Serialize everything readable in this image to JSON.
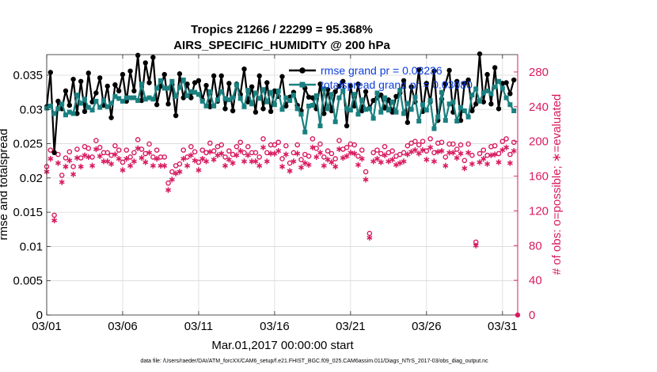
{
  "chart_data": {
    "type": "line",
    "title_line1": "Tropics 21266 / 22299 = 95.368%",
    "title_line2": "AIRS_SPECIFIC_HUMIDITY @ 200 hPa",
    "xlabel": "Mar.01,2017 00:00:00 start",
    "ylabel_left": "rmse and totalspread",
    "ylabel_right": "# of obs: o=possible; ∗=evaluated",
    "footer": "data file: /Users/raeder/DAI/ATM_forcXX/CAM6_setup/f.e21.FHIST_BGC.f09_025.CAM6assim.011/Diags_NTrS_2017-03/obs_diag_output.nc",
    "xlim": [
      1,
      32
    ],
    "ylim_left": [
      0,
      0.038
    ],
    "ylim_right": [
      0,
      300
    ],
    "x_ticks": [
      1,
      6,
      11,
      16,
      21,
      26,
      31
    ],
    "x_tick_labels": [
      "03/01",
      "03/06",
      "03/11",
      "03/16",
      "03/21",
      "03/26",
      "03/31"
    ],
    "y_ticks_left": [
      0,
      0.005,
      0.01,
      0.015,
      0.02,
      0.025,
      0.03,
      0.035
    ],
    "y_tick_labels_left": [
      "0",
      "0.005",
      "0.01",
      "0.015",
      "0.02",
      "0.025",
      "0.03",
      "0.035"
    ],
    "y_ticks_right": [
      0,
      40,
      80,
      120,
      160,
      200,
      240,
      280
    ],
    "y_tick_labels_right": [
      "0",
      "40",
      "80",
      "120",
      "160",
      "200",
      "240",
      "280"
    ],
    "legend": [
      {
        "label": "rmse grand pr = 0.03236",
        "series": "rmse"
      },
      {
        "label": "totalspread grand pr = 0.03080",
        "series": "totalspread"
      }
    ],
    "colors": {
      "rmse": "#000000",
      "totalspread": "#1a8080",
      "obs": "#d81b60",
      "right_axis": "#d81b60"
    },
    "x": [
      1.0,
      1.25,
      1.5,
      1.75,
      2.0,
      2.25,
      2.5,
      2.75,
      3.0,
      3.25,
      3.5,
      3.75,
      4.0,
      4.25,
      4.5,
      4.75,
      5.0,
      5.25,
      5.5,
      5.75,
      6.0,
      6.25,
      6.5,
      6.75,
      7.0,
      7.25,
      7.5,
      7.75,
      8.0,
      8.25,
      8.5,
      8.75,
      9.0,
      9.25,
      9.5,
      9.75,
      10.0,
      10.25,
      10.5,
      10.75,
      11.0,
      11.25,
      11.5,
      11.75,
      12.0,
      12.25,
      12.5,
      12.75,
      13.0,
      13.25,
      13.5,
      13.75,
      14.0,
      14.25,
      14.5,
      14.75,
      15.0,
      15.25,
      15.5,
      15.75,
      16.0,
      16.25,
      16.5,
      16.75,
      17.0,
      17.25,
      17.5,
      17.75,
      18.0,
      18.25,
      18.5,
      18.75,
      19.0,
      19.25,
      19.5,
      19.75,
      20.0,
      20.25,
      20.5,
      20.75,
      21.0,
      21.25,
      21.5,
      21.75,
      22.0,
      22.25,
      22.5,
      22.75,
      23.0,
      23.25,
      23.5,
      23.75,
      24.0,
      24.25,
      24.5,
      24.75,
      25.0,
      25.25,
      25.5,
      25.75,
      26.0,
      26.25,
      26.5,
      26.75,
      27.0,
      27.25,
      27.5,
      27.75,
      28.0,
      28.25,
      28.5,
      28.75,
      29.0,
      29.25,
      29.5,
      29.75,
      30.0,
      30.25,
      30.5,
      30.75,
      31.0,
      31.25,
      31.5,
      31.75
    ],
    "series": [
      {
        "name": "rmse",
        "values": [
          0.0304,
          0.0354,
          0.0237,
          0.0312,
          0.0301,
          0.0327,
          0.0306,
          0.0344,
          0.0294,
          0.0341,
          0.0297,
          0.0353,
          0.0311,
          0.0324,
          0.0346,
          0.0306,
          0.0334,
          0.0288,
          0.0336,
          0.0327,
          0.0351,
          0.0312,
          0.0356,
          0.0327,
          0.0379,
          0.0313,
          0.0368,
          0.0339,
          0.0376,
          0.0307,
          0.0334,
          0.0351,
          0.0308,
          0.0336,
          0.0291,
          0.0352,
          0.0317,
          0.0337,
          0.0317,
          0.0339,
          0.0342,
          0.0314,
          0.0335,
          0.0304,
          0.0349,
          0.0312,
          0.0349,
          0.0301,
          0.0338,
          0.0298,
          0.0337,
          0.0322,
          0.0359,
          0.0311,
          0.0333,
          0.0296,
          0.0349,
          0.0301,
          0.0339,
          0.0297,
          0.0327,
          0.0319,
          0.0348,
          0.0305,
          0.0318,
          0.0325,
          0.0306,
          0.0298,
          0.0331,
          0.0318,
          0.0317,
          0.0301,
          0.0337,
          0.0294,
          0.0329,
          0.0298,
          0.0326,
          0.0334,
          0.0341,
          0.0276,
          0.0334,
          0.0305,
          0.0337,
          0.0298,
          0.0326,
          0.0302,
          0.0313,
          0.0317,
          0.0321,
          0.0302,
          0.0314,
          0.0296,
          0.0319,
          0.0324,
          0.0342,
          0.0281,
          0.0333,
          0.0311,
          0.0358,
          0.0297,
          0.0338,
          0.0311,
          0.0356,
          0.0284,
          0.0315,
          0.0337,
          0.0357,
          0.0296,
          0.0341,
          0.0284,
          0.0338,
          0.0343,
          0.0298,
          0.0308,
          0.0381,
          0.0311,
          0.0351,
          0.0308,
          0.0361,
          0.0301,
          0.0338,
          0.0339,
          0.0323,
          0.0343
        ]
      },
      {
        "name": "totalspread",
        "values": [
          0.0302,
          0.0305,
          0.0294,
          0.0301,
          0.0308,
          0.0292,
          0.0296,
          0.0294,
          0.0321,
          0.0309,
          0.0315,
          0.0303,
          0.0299,
          0.0312,
          0.0303,
          0.0313,
          0.0304,
          0.0309,
          0.0319,
          0.0316,
          0.0312,
          0.0317,
          0.0317,
          0.0317,
          0.0313,
          0.0337,
          0.0315,
          0.0317,
          0.0315,
          0.0331,
          0.0342,
          0.0331,
          0.0331,
          0.0341,
          0.0319,
          0.0332,
          0.0343,
          0.032,
          0.0326,
          0.0325,
          0.0322,
          0.0312,
          0.0305,
          0.0326,
          0.0305,
          0.0314,
          0.0326,
          0.0316,
          0.0314,
          0.0317,
          0.0336,
          0.0316,
          0.0304,
          0.0328,
          0.0308,
          0.0324,
          0.0316,
          0.0329,
          0.0311,
          0.0325,
          0.0307,
          0.0327,
          0.03,
          0.0317,
          0.0313,
          0.0321,
          0.0301,
          0.0293,
          0.0267,
          0.0305,
          0.0306,
          0.032,
          0.0276,
          0.033,
          0.0301,
          0.0322,
          0.0282,
          0.0317,
          0.0327,
          0.0301,
          0.0299,
          0.0322,
          0.0293,
          0.0314,
          0.03,
          0.0301,
          0.0287,
          0.0324,
          0.0296,
          0.0317,
          0.0299,
          0.0311,
          0.0296,
          0.0328,
          0.0294,
          0.0309,
          0.03,
          0.0318,
          0.0283,
          0.0307,
          0.0299,
          0.0313,
          0.0272,
          0.0289,
          0.0325,
          0.0284,
          0.0308,
          0.0311,
          0.0283,
          0.0303,
          0.0298,
          0.0289,
          0.0321,
          0.033,
          0.0312,
          0.0324,
          0.0327,
          0.0323,
          0.0333,
          0.0341,
          0.0331,
          0.0317,
          0.0307,
          0.0298
        ]
      },
      {
        "name": "obs_possible",
        "values": [
          171,
          190,
          115,
          185,
          161,
          181,
          188,
          171,
          191,
          181,
          194,
          192,
          182,
          201,
          193,
          187,
          187,
          184,
          195,
          190,
          176,
          190,
          182,
          187,
          202,
          191,
          186,
          197,
          182,
          190,
          182,
          182,
          152,
          165,
          172,
          174,
          190,
          182,
          194,
          188,
          176,
          190,
          187,
          198,
          189,
          194,
          196,
          182,
          189,
          185,
          194,
          199,
          187,
          194,
          187,
          187,
          182,
          203,
          187,
          196,
          196,
          199,
          180,
          195,
          175,
          187,
          196,
          179,
          185,
          183,
          203,
          192,
          197,
          182,
          189,
          186,
          180,
          201,
          191,
          193,
          197,
          196,
          183,
          190,
          165,
          94,
          187,
          190,
          186,
          194,
          187,
          189,
          183,
          185,
          187,
          195,
          198,
          200,
          196,
          200,
          189,
          203,
          187,
          198,
          199,
          182,
          197,
          197,
          191,
          196,
          178,
          197,
          184,
          84,
          186,
          190,
          184,
          194,
          195,
          186,
          200,
          203,
          185,
          199
        ]
      },
      {
        "name": "obs_evaluated",
        "values": [
          165,
          180,
          109,
          175,
          153,
          171,
          178,
          162,
          181,
          171,
          184,
          182,
          172,
          191,
          183,
          177,
          177,
          174,
          185,
          180,
          167,
          180,
          172,
          177,
          192,
          181,
          176,
          187,
          172,
          180,
          172,
          172,
          144,
          156,
          163,
          165,
          180,
          172,
          184,
          178,
          167,
          180,
          177,
          188,
          179,
          184,
          186,
          172,
          179,
          175,
          184,
          189,
          177,
          184,
          177,
          177,
          172,
          193,
          177,
          186,
          186,
          189,
          171,
          185,
          166,
          177,
          186,
          170,
          175,
          173,
          193,
          182,
          187,
          172,
          179,
          176,
          171,
          191,
          181,
          183,
          187,
          186,
          173,
          180,
          156,
          89,
          177,
          180,
          176,
          184,
          177,
          179,
          173,
          175,
          177,
          185,
          188,
          190,
          186,
          190,
          179,
          193,
          177,
          188,
          189,
          172,
          187,
          187,
          181,
          186,
          169,
          187,
          174,
          80,
          176,
          180,
          174,
          184,
          185,
          176,
          190,
          193,
          175,
          189
        ]
      }
    ]
  }
}
